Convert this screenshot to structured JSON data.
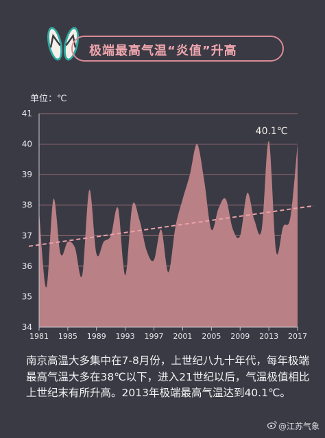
{
  "header": {
    "title": "极端最高气温“炎值”升高"
  },
  "unit_label": "单位：℃",
  "chart_data": {
    "type": "area",
    "x_ticks": [
      1981,
      1985,
      1989,
      1993,
      1997,
      2001,
      2005,
      2009,
      2013,
      2017
    ],
    "y_ticks": [
      34,
      35,
      36,
      37,
      38,
      39,
      40,
      41
    ],
    "ylim": [
      34,
      41
    ],
    "xlim": [
      1981,
      2017
    ],
    "grid": true,
    "years": [
      1981,
      1982,
      1983,
      1984,
      1985,
      1986,
      1987,
      1988,
      1989,
      1990,
      1991,
      1992,
      1993,
      1994,
      1995,
      1996,
      1997,
      1998,
      1999,
      2000,
      2001,
      2002,
      2003,
      2004,
      2005,
      2006,
      2007,
      2008,
      2009,
      2010,
      2011,
      2012,
      2013,
      2014,
      2015,
      2016,
      2017
    ],
    "values": [
      37.8,
      35.3,
      38.2,
      36.4,
      36.8,
      36.6,
      35.7,
      38.5,
      36.4,
      36.8,
      37.0,
      37.9,
      35.7,
      38.0,
      37.5,
      36.5,
      36.2,
      37.2,
      35.8,
      37.3,
      38.2,
      39.0,
      40.0,
      38.8,
      37.2,
      37.9,
      38.2,
      37.2,
      37.0,
      38.4,
      37.5,
      37.2,
      40.1,
      36.5,
      37.3,
      37.6,
      40.0
    ],
    "trend": {
      "start": 36.65,
      "end": 37.98
    },
    "annotation": {
      "year": 2013,
      "text": "40.1℃"
    },
    "colors": {
      "area": "#b98085",
      "grid": "#9a6f76",
      "trend": "#eba1a8",
      "axis_text": "#e6e6ea"
    }
  },
  "description": "南京高温大多集中在7-8月份，上世纪八九十年代，每年极端最高气温大多在38℃以下，进入21世纪以后，气温极值相比上世纪末有所升高。2013年极端最高气温达到40.1℃。",
  "watermark": "@江苏气象"
}
